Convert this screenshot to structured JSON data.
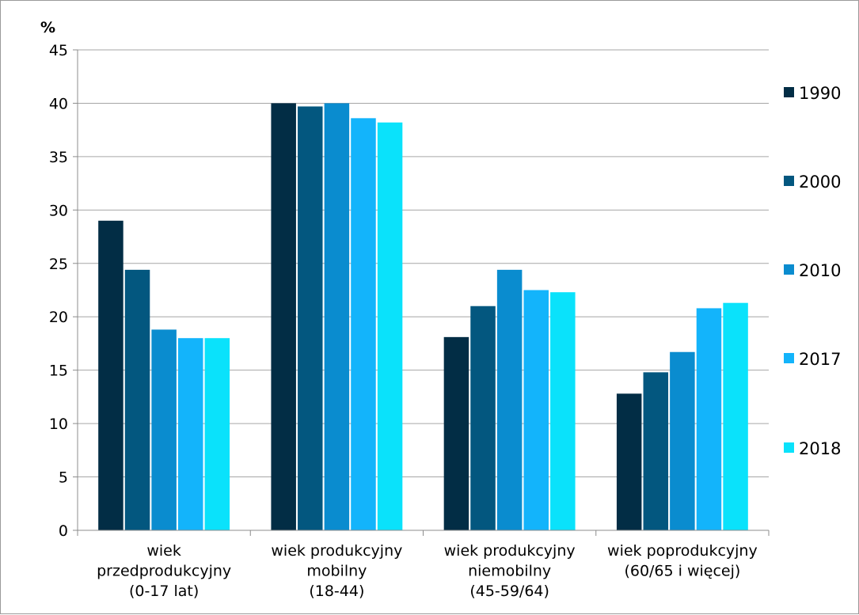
{
  "chart_data": {
    "type": "bar",
    "ylabel": "%",
    "ylim": [
      0,
      45
    ],
    "yticks": [
      0,
      5,
      10,
      15,
      20,
      25,
      30,
      35,
      40,
      45
    ],
    "grid": true,
    "legend_position": "right",
    "categories": [
      [
        "wiek",
        "przedprodukcyjny",
        "(0-17 lat)"
      ],
      [
        "wiek produkcyjny",
        "mobilny",
        "(18-44)"
      ],
      [
        "wiek produkcyjny",
        "niemobilny",
        "(45-59/64)"
      ],
      [
        "wiek poprodukcyjny",
        "(60/65 i więcej)"
      ]
    ],
    "series": [
      {
        "name": "1990",
        "color": "#022d45",
        "values": [
          29.0,
          40.0,
          18.1,
          12.8
        ]
      },
      {
        "name": "2000",
        "color": "#03577f",
        "values": [
          24.4,
          39.7,
          21.0,
          14.8
        ]
      },
      {
        "name": "2010",
        "color": "#0a8ccf",
        "values": [
          18.8,
          40.0,
          24.4,
          16.7
        ]
      },
      {
        "name": "2017",
        "color": "#13b4fb",
        "values": [
          18.0,
          38.6,
          22.5,
          20.8
        ]
      },
      {
        "name": "2018",
        "color": "#0ae2fb",
        "values": [
          18.0,
          38.2,
          22.3,
          21.3
        ]
      }
    ]
  }
}
